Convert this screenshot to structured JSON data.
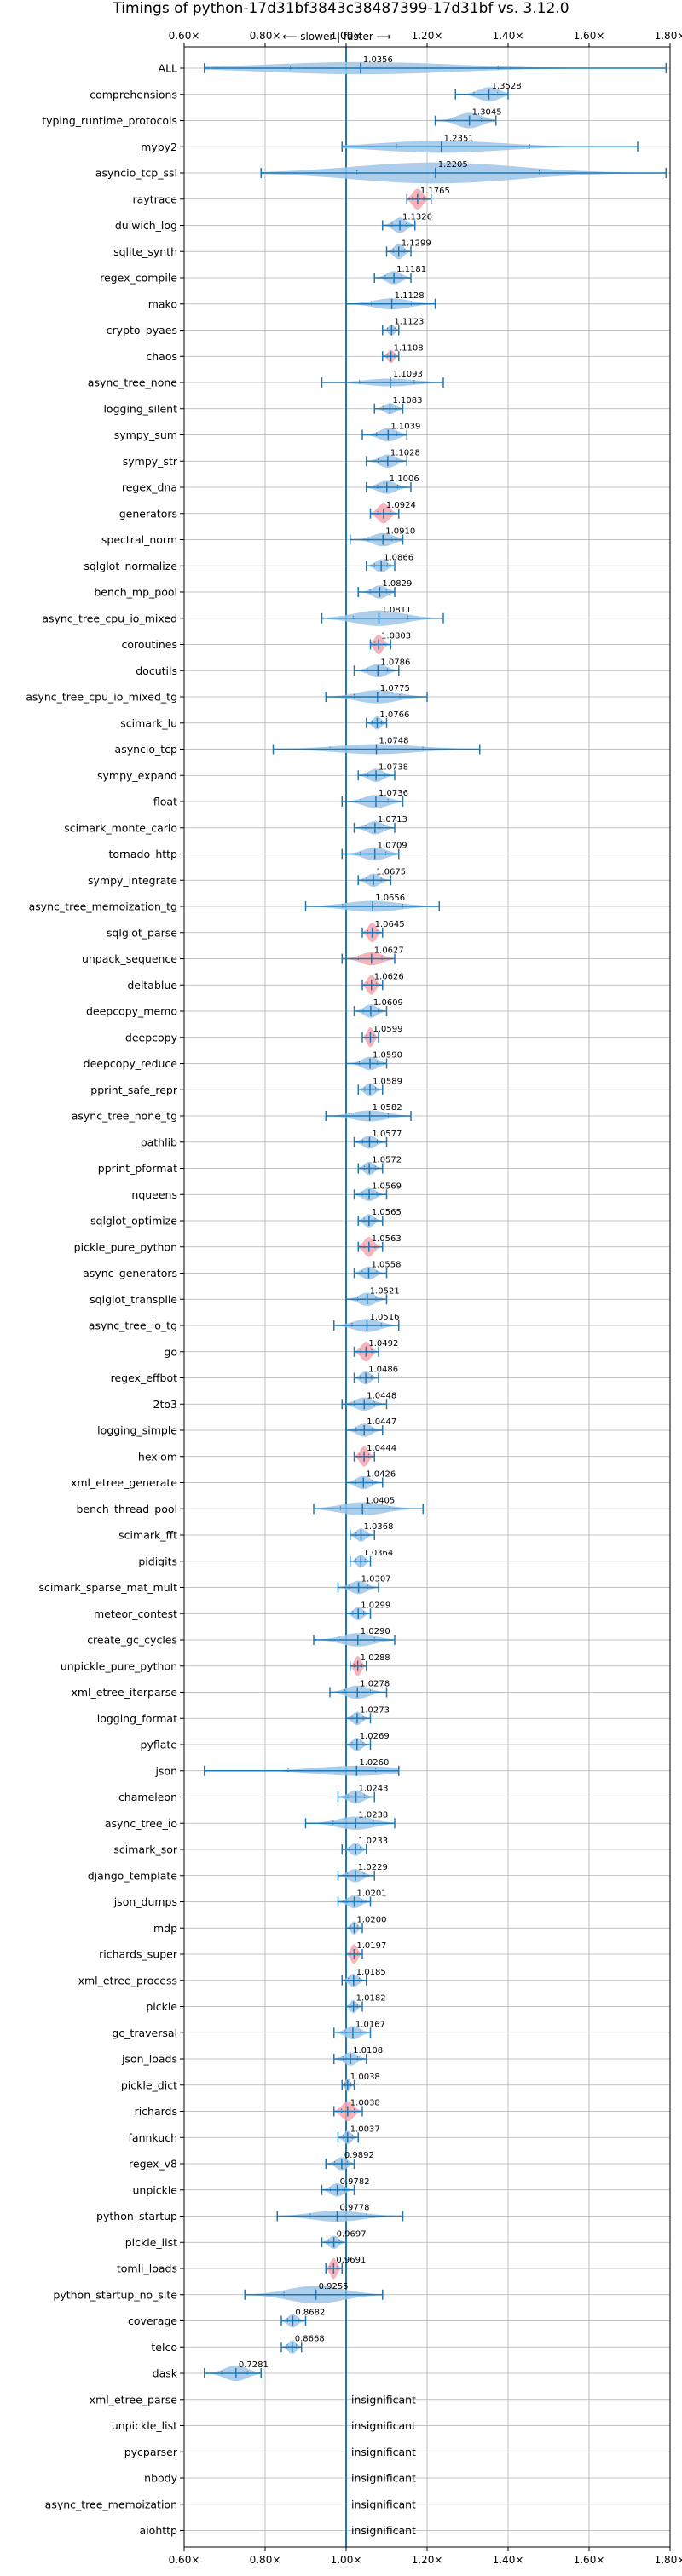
{
  "chart_data": {
    "type": "violin",
    "title": "Timings of python-17d31bf3843c38487399-17d31bf vs. 3.12.0",
    "direction_label": "⟵ slower | faster ⟶",
    "xlim": [
      0.6,
      1.8
    ],
    "x_ticks": [
      0.6,
      0.8,
      1.0,
      1.2,
      1.4,
      1.6,
      1.8
    ],
    "x_tick_labels": [
      "0.60×",
      "0.80×",
      "1.00×",
      "1.20×",
      "1.40×",
      "1.60×",
      "1.80×"
    ],
    "reference_line": 1.0,
    "grid": true,
    "insignificant_label": "insignificant",
    "colors": {
      "normal_violin": "#9fc5e8",
      "highlight_violin": "#f4a6ad",
      "line": "#1f77b4",
      "grid": "#b0b0b0"
    },
    "benchmarks": [
      {
        "name": "ALL",
        "value": 1.0356,
        "label": "1.0356",
        "min": 0.65,
        "max": 1.79,
        "width": 0.55
      },
      {
        "name": "comprehensions",
        "value": 1.3528,
        "label": "1.3528",
        "min": 1.27,
        "max": 1.4,
        "width": 0.65
      },
      {
        "name": "typing_runtime_protocols",
        "value": 1.3045,
        "label": "1.3045",
        "min": 1.22,
        "max": 1.37,
        "width": 0.7
      },
      {
        "name": "mypy2",
        "value": 1.2351,
        "label": "1.2351",
        "min": 0.99,
        "max": 1.72,
        "width": 0.55
      },
      {
        "name": "asyncio_tcp_ssl",
        "value": 1.2205,
        "label": "1.2205",
        "min": 0.79,
        "max": 1.79,
        "width": 0.95
      },
      {
        "name": "raytrace",
        "value": 1.1765,
        "label": "1.1765",
        "min": 1.15,
        "max": 1.21,
        "width": 0.95,
        "highlight": true
      },
      {
        "name": "dulwich_log",
        "value": 1.1326,
        "label": "1.1326",
        "min": 1.09,
        "max": 1.17,
        "width": 0.7
      },
      {
        "name": "sqlite_synth",
        "value": 1.1299,
        "label": "1.1299",
        "min": 1.1,
        "max": 1.16,
        "width": 0.7
      },
      {
        "name": "regex_compile",
        "value": 1.1181,
        "label": "1.1181",
        "min": 1.07,
        "max": 1.16,
        "width": 0.6
      },
      {
        "name": "mako",
        "value": 1.1128,
        "label": "1.1128",
        "min": 1.0,
        "max": 1.22,
        "width": 0.5
      },
      {
        "name": "crypto_pyaes",
        "value": 1.1123,
        "label": "1.1123",
        "min": 1.09,
        "max": 1.13,
        "width": 0.5
      },
      {
        "name": "chaos",
        "value": 1.1108,
        "label": "1.1108",
        "min": 1.09,
        "max": 1.13,
        "width": 0.6,
        "highlight": true
      },
      {
        "name": "async_tree_none",
        "value": 1.1093,
        "label": "1.1093",
        "min": 0.94,
        "max": 1.24,
        "width": 0.35
      },
      {
        "name": "logging_silent",
        "value": 1.1083,
        "label": "1.1083",
        "min": 1.07,
        "max": 1.14,
        "width": 0.5
      },
      {
        "name": "sympy_sum",
        "value": 1.1039,
        "label": "1.1039",
        "min": 1.04,
        "max": 1.15,
        "width": 0.6
      },
      {
        "name": "sympy_str",
        "value": 1.1028,
        "label": "1.1028",
        "min": 1.05,
        "max": 1.15,
        "width": 0.6
      },
      {
        "name": "regex_dna",
        "value": 1.1006,
        "label": "1.1006",
        "min": 1.05,
        "max": 1.16,
        "width": 0.6
      },
      {
        "name": "generators",
        "value": 1.0924,
        "label": "1.0924",
        "min": 1.06,
        "max": 1.13,
        "width": 0.9,
        "highlight": true
      },
      {
        "name": "spectral_norm",
        "value": 1.091,
        "label": "1.0910",
        "min": 1.01,
        "max": 1.14,
        "width": 0.6
      },
      {
        "name": "sqlglot_normalize",
        "value": 1.0866,
        "label": "1.0866",
        "min": 1.05,
        "max": 1.12,
        "width": 0.6
      },
      {
        "name": "bench_mp_pool",
        "value": 1.0829,
        "label": "1.0829",
        "min": 1.03,
        "max": 1.12,
        "width": 0.6
      },
      {
        "name": "async_tree_cpu_io_mixed",
        "value": 1.0811,
        "label": "1.0811",
        "min": 0.94,
        "max": 1.24,
        "width": 0.7
      },
      {
        "name": "coroutines",
        "value": 1.0803,
        "label": "1.0803",
        "min": 1.06,
        "max": 1.11,
        "width": 0.9,
        "highlight": true
      },
      {
        "name": "docutils",
        "value": 1.0786,
        "label": "1.0786",
        "min": 1.02,
        "max": 1.13,
        "width": 0.6
      },
      {
        "name": "async_tree_cpu_io_mixed_tg",
        "value": 1.0775,
        "label": "1.0775",
        "min": 0.95,
        "max": 1.2,
        "width": 0.6
      },
      {
        "name": "scimark_lu",
        "value": 1.0766,
        "label": "1.0766",
        "min": 1.05,
        "max": 1.1,
        "width": 0.6
      },
      {
        "name": "asyncio_tcp",
        "value": 1.0748,
        "label": "1.0748",
        "min": 0.82,
        "max": 1.33,
        "width": 0.45
      },
      {
        "name": "sympy_expand",
        "value": 1.0738,
        "label": "1.0738",
        "min": 1.03,
        "max": 1.12,
        "width": 0.6
      },
      {
        "name": "float",
        "value": 1.0736,
        "label": "1.0736",
        "min": 0.99,
        "max": 1.14,
        "width": 0.6
      },
      {
        "name": "scimark_monte_carlo",
        "value": 1.0713,
        "label": "1.0713",
        "min": 1.02,
        "max": 1.12,
        "width": 0.6
      },
      {
        "name": "tornado_http",
        "value": 1.0709,
        "label": "1.0709",
        "min": 0.99,
        "max": 1.13,
        "width": 0.6
      },
      {
        "name": "sympy_integrate",
        "value": 1.0675,
        "label": "1.0675",
        "min": 1.03,
        "max": 1.11,
        "width": 0.6
      },
      {
        "name": "async_tree_memoization_tg",
        "value": 1.0656,
        "label": "1.0656",
        "min": 0.9,
        "max": 1.23,
        "width": 0.5
      },
      {
        "name": "sqlglot_parse",
        "value": 1.0645,
        "label": "1.0645",
        "min": 1.04,
        "max": 1.09,
        "width": 0.9,
        "highlight": true
      },
      {
        "name": "unpack_sequence",
        "value": 1.0627,
        "label": "1.0627",
        "min": 0.99,
        "max": 1.12,
        "width": 0.6,
        "highlight": true
      },
      {
        "name": "deltablue",
        "value": 1.0626,
        "label": "1.0626",
        "min": 1.04,
        "max": 1.09,
        "width": 0.9,
        "highlight": true
      },
      {
        "name": "deepcopy_memo",
        "value": 1.0609,
        "label": "1.0609",
        "min": 1.02,
        "max": 1.1,
        "width": 0.6
      },
      {
        "name": "deepcopy",
        "value": 1.0599,
        "label": "1.0599",
        "min": 1.04,
        "max": 1.08,
        "width": 0.9,
        "highlight": true
      },
      {
        "name": "deepcopy_reduce",
        "value": 1.059,
        "label": "1.0590",
        "min": 1.0,
        "max": 1.1,
        "width": 0.6
      },
      {
        "name": "pprint_safe_repr",
        "value": 1.0589,
        "label": "1.0589",
        "min": 1.03,
        "max": 1.09,
        "width": 0.6
      },
      {
        "name": "async_tree_none_tg",
        "value": 1.0582,
        "label": "1.0582",
        "min": 0.95,
        "max": 1.16,
        "width": 0.5
      },
      {
        "name": "pathlib",
        "value": 1.0577,
        "label": "1.0577",
        "min": 1.02,
        "max": 1.1,
        "width": 0.6
      },
      {
        "name": "pprint_pformat",
        "value": 1.0572,
        "label": "1.0572",
        "min": 1.03,
        "max": 1.09,
        "width": 0.6
      },
      {
        "name": "nqueens",
        "value": 1.0569,
        "label": "1.0569",
        "min": 1.02,
        "max": 1.1,
        "width": 0.6
      },
      {
        "name": "sqlglot_optimize",
        "value": 1.0565,
        "label": "1.0565",
        "min": 1.03,
        "max": 1.09,
        "width": 0.6
      },
      {
        "name": "pickle_pure_python",
        "value": 1.0563,
        "label": "1.0563",
        "min": 1.03,
        "max": 1.09,
        "width": 0.9,
        "highlight": true
      },
      {
        "name": "async_generators",
        "value": 1.0558,
        "label": "1.0558",
        "min": 1.02,
        "max": 1.1,
        "width": 0.6
      },
      {
        "name": "sqlglot_transpile",
        "value": 1.0521,
        "label": "1.0521",
        "min": 1.0,
        "max": 1.1,
        "width": 0.6
      },
      {
        "name": "async_tree_io_tg",
        "value": 1.0516,
        "label": "1.0516",
        "min": 0.97,
        "max": 1.13,
        "width": 0.6
      },
      {
        "name": "go",
        "value": 1.0492,
        "label": "1.0492",
        "min": 1.02,
        "max": 1.08,
        "width": 0.9,
        "highlight": true
      },
      {
        "name": "regex_effbot",
        "value": 1.0486,
        "label": "1.0486",
        "min": 1.02,
        "max": 1.08,
        "width": 0.6
      },
      {
        "name": "2to3",
        "value": 1.0448,
        "label": "1.0448",
        "min": 0.99,
        "max": 1.1,
        "width": 0.6
      },
      {
        "name": "logging_simple",
        "value": 1.0447,
        "label": "1.0447",
        "min": 1.0,
        "max": 1.09,
        "width": 0.6
      },
      {
        "name": "hexiom",
        "value": 1.0444,
        "label": "1.0444",
        "min": 1.02,
        "max": 1.07,
        "width": 0.9,
        "highlight": true
      },
      {
        "name": "xml_etree_generate",
        "value": 1.0426,
        "label": "1.0426",
        "min": 1.0,
        "max": 1.09,
        "width": 0.6
      },
      {
        "name": "bench_thread_pool",
        "value": 1.0405,
        "label": "1.0405",
        "min": 0.92,
        "max": 1.19,
        "width": 0.6
      },
      {
        "name": "scimark_fft",
        "value": 1.0368,
        "label": "1.0368",
        "min": 1.01,
        "max": 1.07,
        "width": 0.6
      },
      {
        "name": "pidigits",
        "value": 1.0364,
        "label": "1.0364",
        "min": 1.01,
        "max": 1.06,
        "width": 0.6
      },
      {
        "name": "scimark_sparse_mat_mult",
        "value": 1.0307,
        "label": "1.0307",
        "min": 0.98,
        "max": 1.08,
        "width": 0.6
      },
      {
        "name": "meteor_contest",
        "value": 1.0299,
        "label": "1.0299",
        "min": 1.0,
        "max": 1.06,
        "width": 0.6
      },
      {
        "name": "create_gc_cycles",
        "value": 1.029,
        "label": "1.0290",
        "min": 0.92,
        "max": 1.12,
        "width": 0.6
      },
      {
        "name": "unpickle_pure_python",
        "value": 1.0288,
        "label": "1.0288",
        "min": 1.01,
        "max": 1.05,
        "width": 0.9,
        "highlight": true
      },
      {
        "name": "xml_etree_iterparse",
        "value": 1.0278,
        "label": "1.0278",
        "min": 0.96,
        "max": 1.1,
        "width": 0.6
      },
      {
        "name": "logging_format",
        "value": 1.0273,
        "label": "1.0273",
        "min": 1.0,
        "max": 1.06,
        "width": 0.6
      },
      {
        "name": "pyflate",
        "value": 1.0269,
        "label": "1.0269",
        "min": 1.0,
        "max": 1.06,
        "width": 0.6
      },
      {
        "name": "json",
        "value": 1.026,
        "label": "1.0260",
        "min": 0.65,
        "max": 1.13,
        "width": 0.45
      },
      {
        "name": "chameleon",
        "value": 1.0243,
        "label": "1.0243",
        "min": 0.98,
        "max": 1.07,
        "width": 0.6
      },
      {
        "name": "async_tree_io",
        "value": 1.0238,
        "label": "1.0238",
        "min": 0.9,
        "max": 1.12,
        "width": 0.6
      },
      {
        "name": "scimark_sor",
        "value": 1.0233,
        "label": "1.0233",
        "min": 0.99,
        "max": 1.05,
        "width": 0.6
      },
      {
        "name": "django_template",
        "value": 1.0229,
        "label": "1.0229",
        "min": 0.98,
        "max": 1.07,
        "width": 0.6
      },
      {
        "name": "json_dumps",
        "value": 1.0201,
        "label": "1.0201",
        "min": 0.98,
        "max": 1.06,
        "width": 0.6
      },
      {
        "name": "mdp",
        "value": 1.02,
        "label": "1.0200",
        "min": 1.0,
        "max": 1.04,
        "width": 0.6
      },
      {
        "name": "richards_super",
        "value": 1.0197,
        "label": "1.0197",
        "min": 1.0,
        "max": 1.04,
        "width": 0.9,
        "highlight": true
      },
      {
        "name": "xml_etree_process",
        "value": 1.0185,
        "label": "1.0185",
        "min": 0.99,
        "max": 1.05,
        "width": 0.6
      },
      {
        "name": "pickle",
        "value": 1.0182,
        "label": "1.0182",
        "min": 1.0,
        "max": 1.04,
        "width": 0.6
      },
      {
        "name": "gc_traversal",
        "value": 1.0167,
        "label": "1.0167",
        "min": 0.97,
        "max": 1.06,
        "width": 0.6
      },
      {
        "name": "json_loads",
        "value": 1.0108,
        "label": "1.0108",
        "min": 0.97,
        "max": 1.05,
        "width": 0.6
      },
      {
        "name": "pickle_dict",
        "value": 1.0038,
        "label": "1.0038",
        "min": 0.99,
        "max": 1.02,
        "width": 0.6
      },
      {
        "name": "richards",
        "value": 1.0038,
        "label": "1.0038",
        "min": 0.97,
        "max": 1.04,
        "width": 0.9,
        "highlight": true
      },
      {
        "name": "fannkuch",
        "value": 1.0037,
        "label": "1.0037",
        "min": 0.98,
        "max": 1.03,
        "width": 0.6
      },
      {
        "name": "regex_v8",
        "value": 0.9892,
        "label": "0.9892",
        "min": 0.95,
        "max": 1.02,
        "width": 0.6
      },
      {
        "name": "unpickle",
        "value": 0.9782,
        "label": "0.9782",
        "min": 0.94,
        "max": 1.02,
        "width": 0.6
      },
      {
        "name": "python_startup",
        "value": 0.9778,
        "label": "0.9778",
        "min": 0.83,
        "max": 1.14,
        "width": 0.5
      },
      {
        "name": "pickle_list",
        "value": 0.9697,
        "label": "0.9697",
        "min": 0.94,
        "max": 1.0,
        "width": 0.6
      },
      {
        "name": "tomli_loads",
        "value": 0.9691,
        "label": "0.9691",
        "min": 0.95,
        "max": 0.99,
        "width": 0.95,
        "highlight": true
      },
      {
        "name": "python_startup_no_site",
        "value": 0.9255,
        "label": "0.9255",
        "min": 0.75,
        "max": 1.09,
        "width": 0.8
      },
      {
        "name": "coverage",
        "value": 0.8682,
        "label": "0.8682",
        "min": 0.84,
        "max": 0.9,
        "width": 0.6
      },
      {
        "name": "telco",
        "value": 0.8668,
        "label": "0.8668",
        "min": 0.84,
        "max": 0.89,
        "width": 0.6
      },
      {
        "name": "dask",
        "value": 0.7281,
        "label": "0.7281",
        "min": 0.65,
        "max": 0.79,
        "width": 0.7
      },
      {
        "name": "xml_etree_parse",
        "insignificant": true
      },
      {
        "name": "unpickle_list",
        "insignificant": true
      },
      {
        "name": "pycparser",
        "insignificant": true
      },
      {
        "name": "nbody",
        "insignificant": true
      },
      {
        "name": "async_tree_memoization",
        "insignificant": true
      },
      {
        "name": "aiohttp",
        "insignificant": true
      }
    ]
  }
}
